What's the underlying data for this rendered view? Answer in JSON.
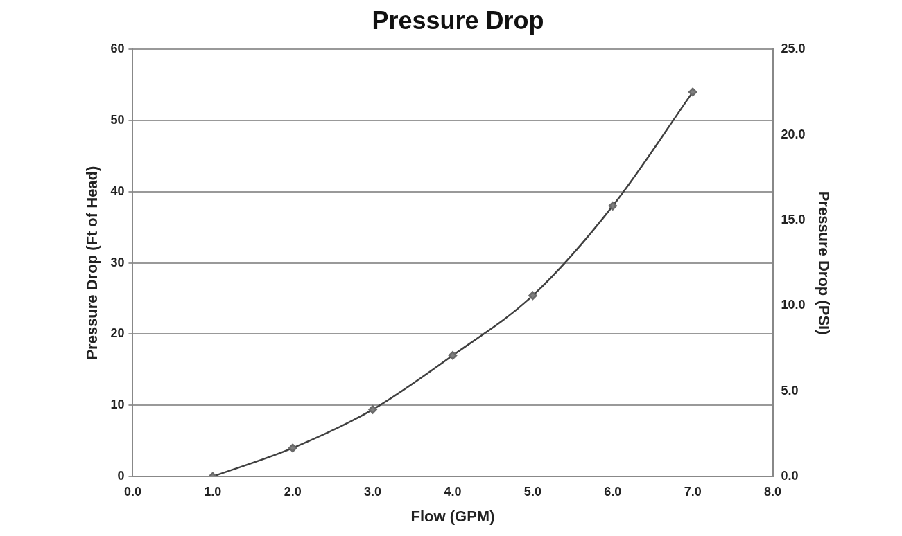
{
  "chart_data": {
    "type": "line",
    "title": "Pressure Drop",
    "xlabel": "Flow (GPM)",
    "ylabel": "Pressure Drop (Ft of Head)",
    "y2label": "Pressure Drop (PSI)",
    "x": [
      1,
      2,
      3,
      4,
      5,
      6,
      7
    ],
    "series": [
      {
        "color": "#404040",
        "values": [
          0,
          4.0,
          9.4,
          17.0,
          25.4,
          38.0,
          54
        ]
      }
    ],
    "xlim": [
      0,
      8
    ],
    "xticks": [
      {
        "value": 0,
        "label": "0.0"
      },
      {
        "value": 1,
        "label": "1.0"
      },
      {
        "value": 2,
        "label": "2.0"
      },
      {
        "value": 3,
        "label": "3.0"
      },
      {
        "value": 4,
        "label": "4.0"
      },
      {
        "value": 5,
        "label": "5.0"
      },
      {
        "value": 6,
        "label": "6.0"
      },
      {
        "value": 7,
        "label": "7.0"
      },
      {
        "value": 8,
        "label": "8.0"
      }
    ],
    "ylim": [
      0,
      60
    ],
    "yticks": [
      0,
      10,
      20,
      30,
      40,
      50,
      60
    ],
    "y2lim": [
      0,
      25
    ],
    "y2ticks": [
      {
        "value": 0,
        "label": "0.0"
      },
      {
        "value": 5,
        "label": "5.0"
      },
      {
        "value": 10,
        "label": "10.0"
      },
      {
        "value": 15,
        "label": "15.0"
      },
      {
        "value": 20,
        "label": "20.0"
      },
      {
        "value": 25,
        "label": "25.0"
      }
    ],
    "grid": "y",
    "legend": false,
    "marker": "diamond",
    "line_style": "solid"
  }
}
